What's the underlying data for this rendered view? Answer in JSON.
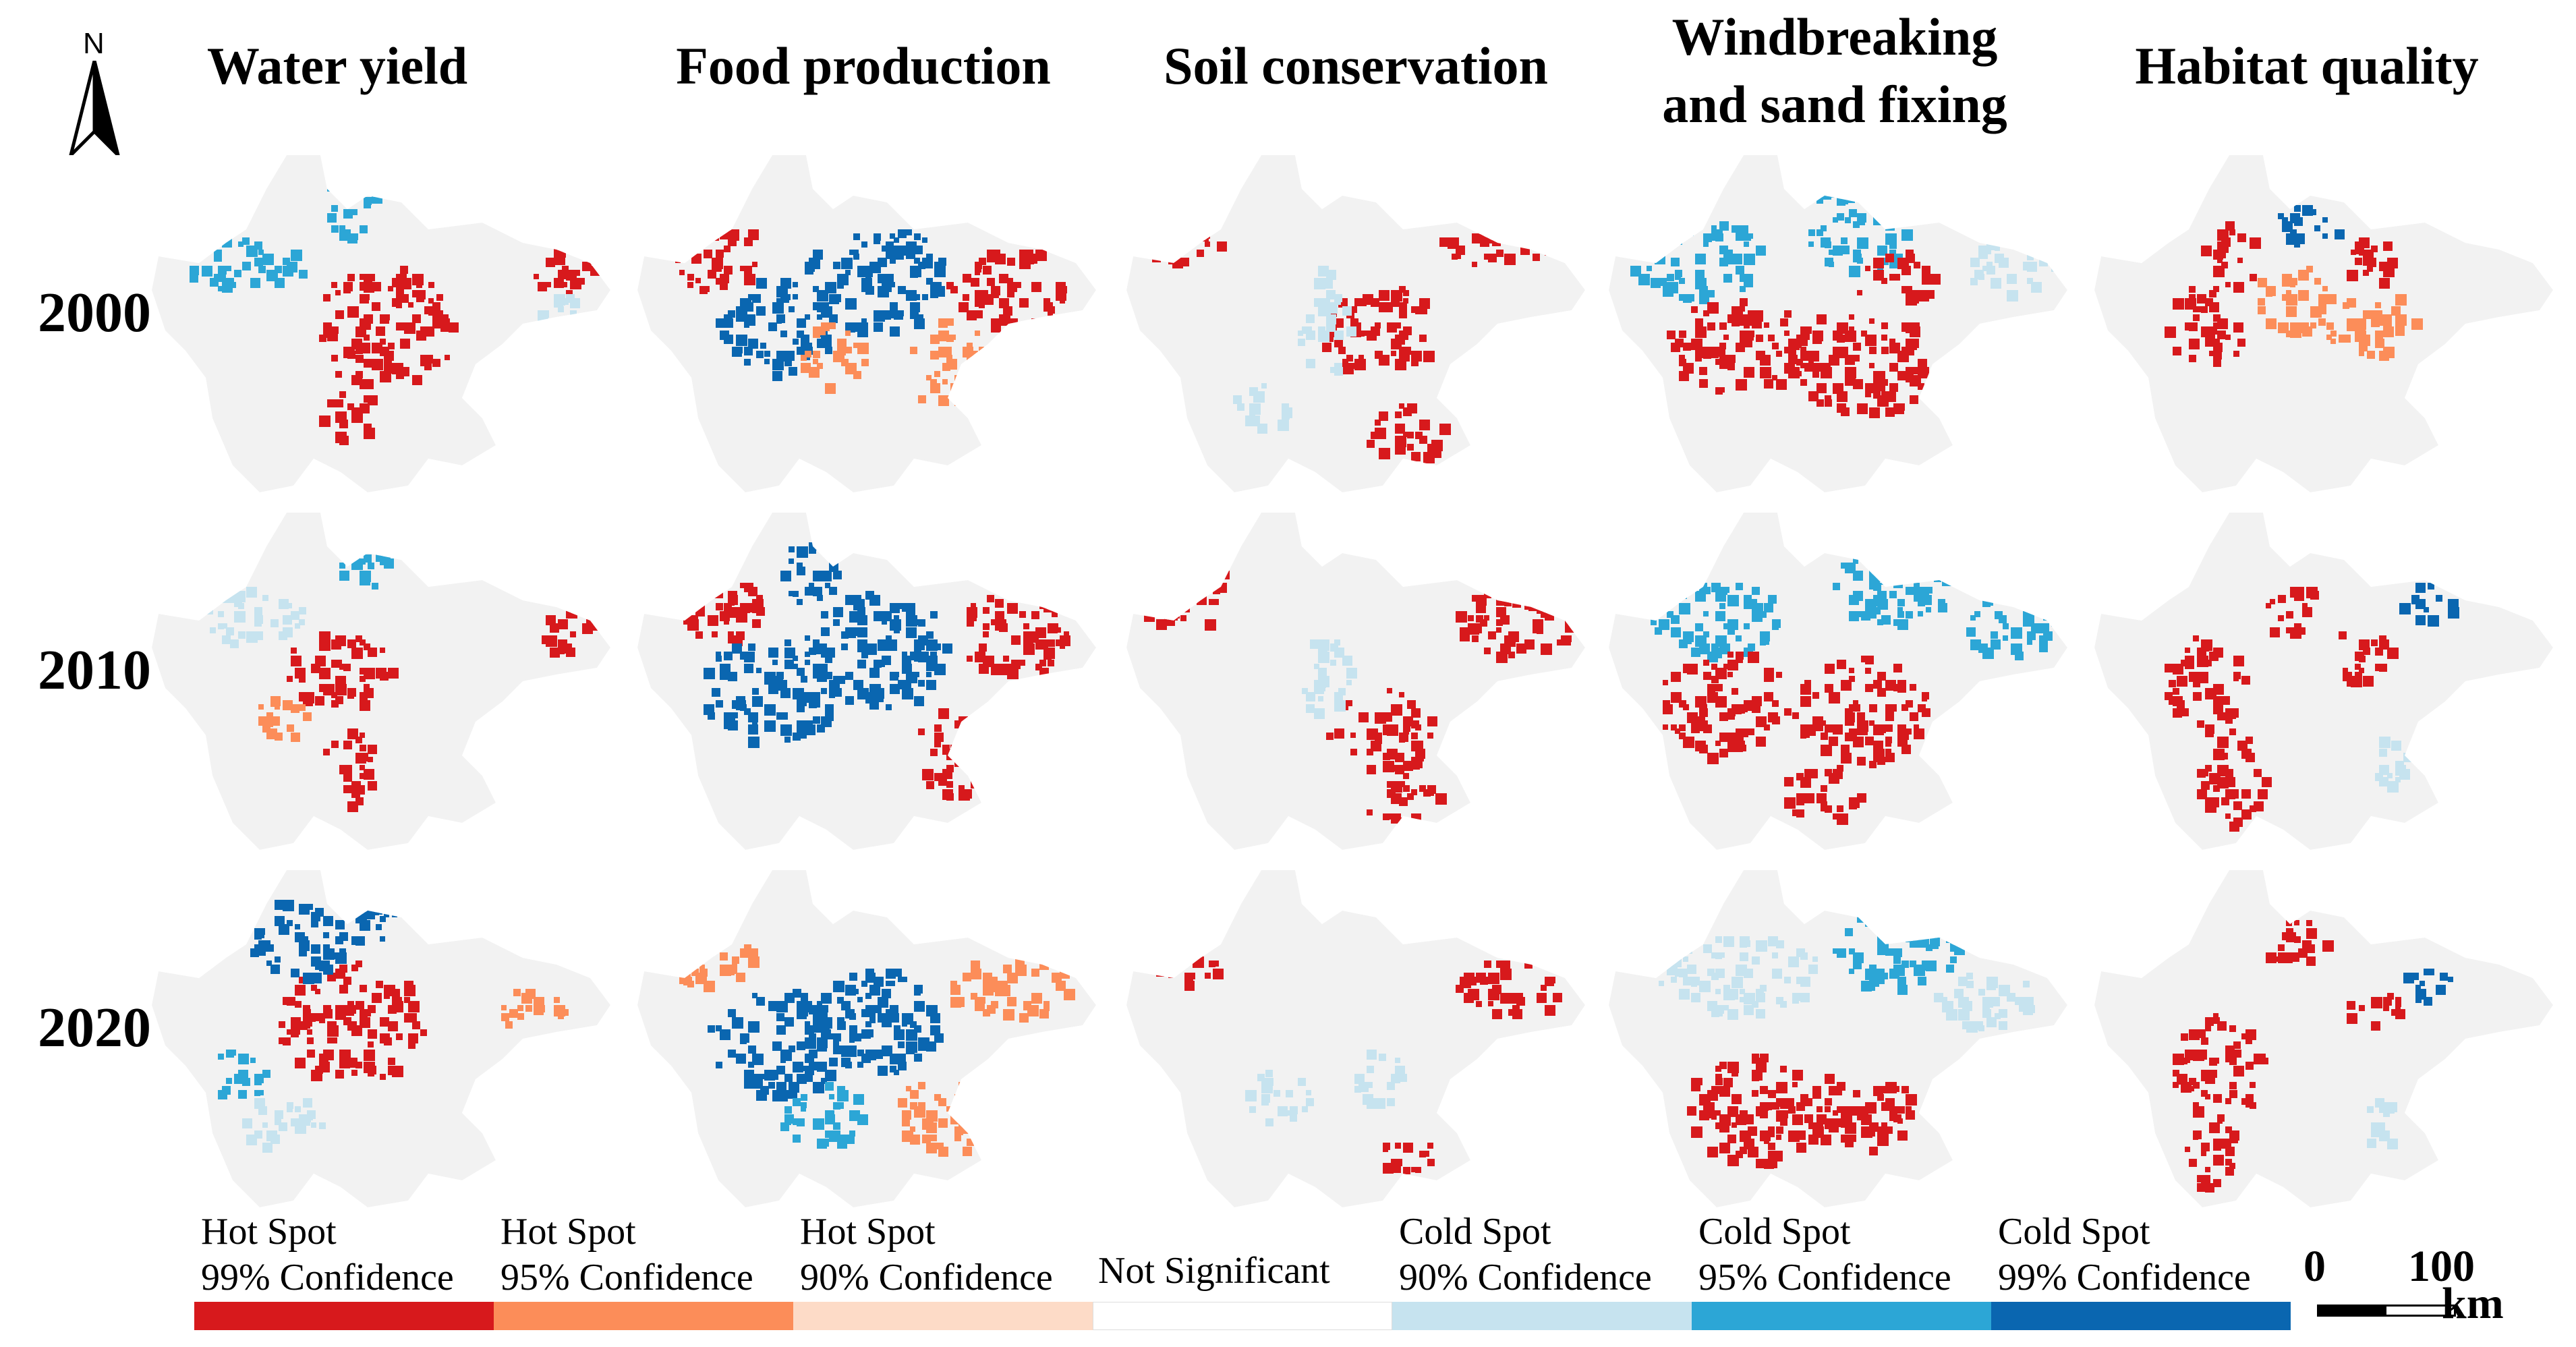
{
  "north_arrow": {
    "label": "N"
  },
  "columns": [
    {
      "title": "Water yield"
    },
    {
      "title": "Food production"
    },
    {
      "title": "Soil conservation"
    },
    {
      "title": "Windbreaking\nand sand fixing"
    },
    {
      "title": "Habitat quality"
    }
  ],
  "rows": [
    {
      "year": "2000"
    },
    {
      "year": "2010"
    },
    {
      "year": "2020"
    }
  ],
  "legend": [
    {
      "line1": "Hot Spot",
      "line2": "99% Confidence",
      "color": "#d7191c"
    },
    {
      "line1": "Hot Spot",
      "line2": "95% Confidence",
      "color": "#fc8d59"
    },
    {
      "line1": "Hot Spot",
      "line2": "90% Confidence",
      "color": "#fddbc7"
    },
    {
      "line1": "Not Significant",
      "line2": "",
      "color": "#ffffff"
    },
    {
      "line1": "Cold Spot",
      "line2": "90% Confidence",
      "color": "#c6e3ef"
    },
    {
      "line1": "Cold Spot",
      "line2": "95% Confidence",
      "color": "#2ca6d6"
    },
    {
      "line1": "Cold Spot",
      "line2": "99% Confidence",
      "color": "#0a66b0"
    }
  ],
  "scale_bar": {
    "start": "0",
    "end": "100",
    "unit": "km"
  }
}
